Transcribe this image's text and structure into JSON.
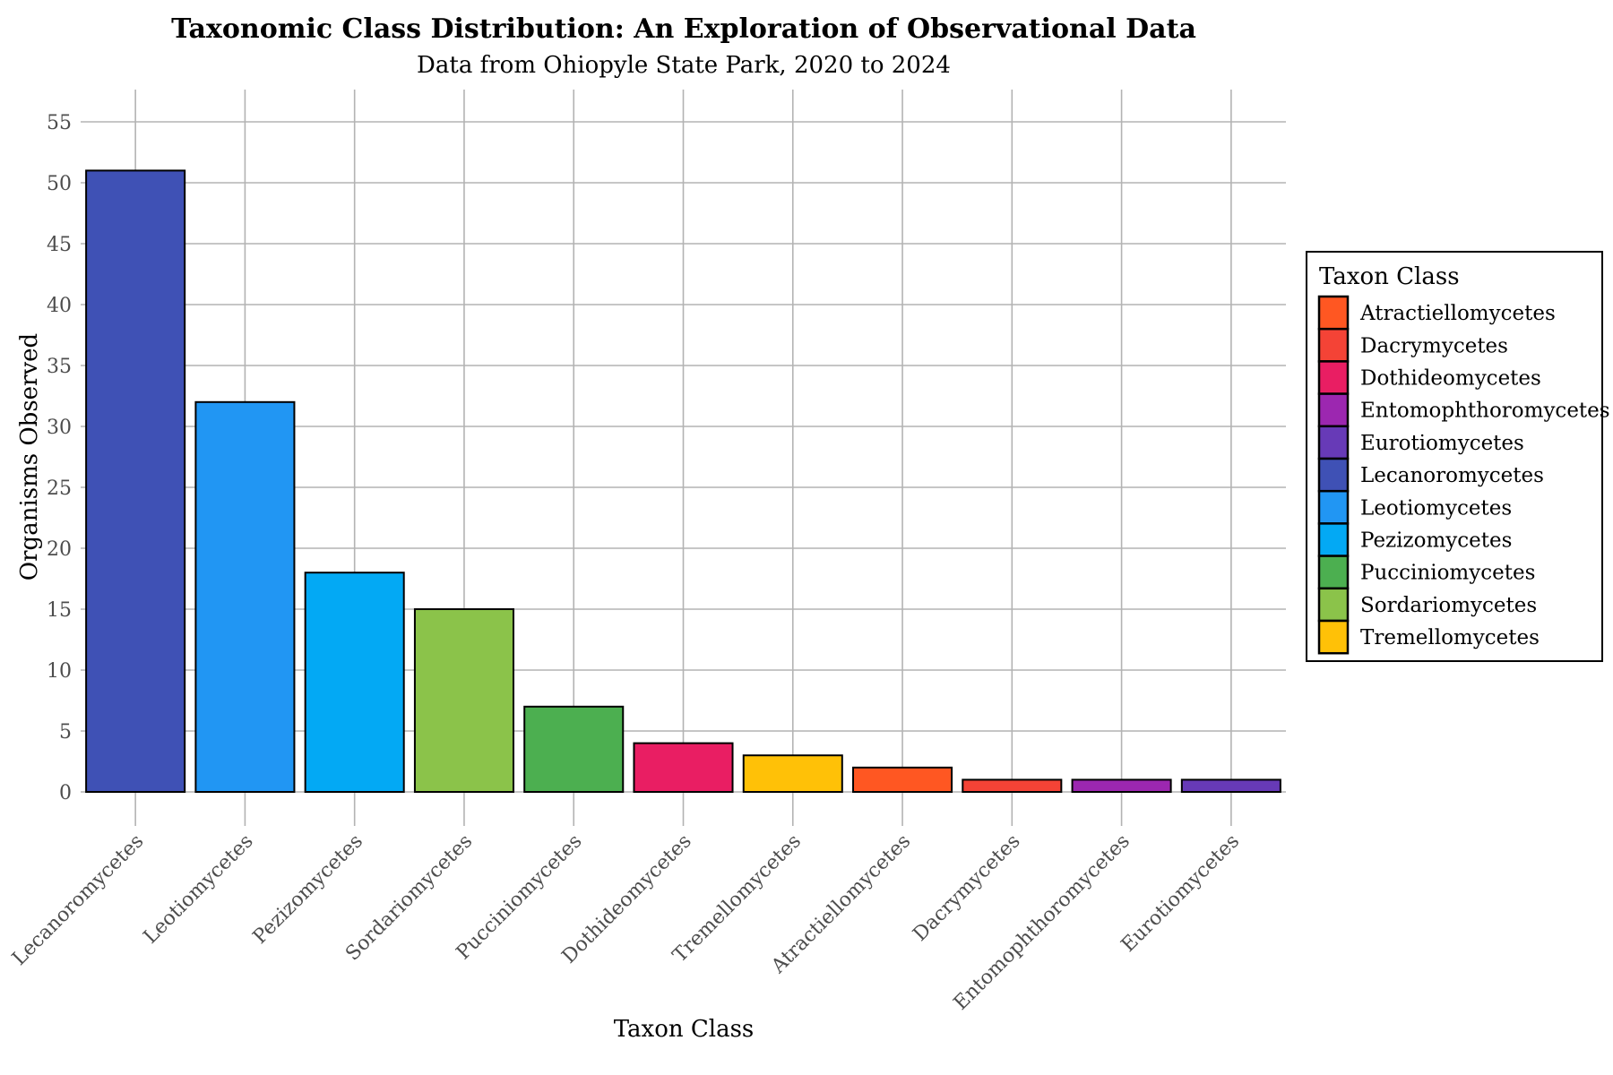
{
  "chart_data": {
    "type": "bar",
    "title": "Taxonomic Class Distribution: An Exploration of Observational Data",
    "subtitle": "Data from Ohiopyle State Park, 2020 to 2024",
    "xlabel": "Taxon Class",
    "ylabel": "Organisms Observed",
    "ylim": [
      0,
      55
    ],
    "yticks": [
      0,
      5,
      10,
      15,
      20,
      25,
      30,
      35,
      40,
      45,
      50,
      55
    ],
    "grid": true,
    "legend_position": "right",
    "categories": [
      "Lecanoromycetes",
      "Leotiomycetes",
      "Pezizomycetes",
      "Sordariomycetes",
      "Pucciniomycetes",
      "Dothideomycetes",
      "Tremellomycetes",
      "Atractiellomycetes",
      "Dacrymycetes",
      "Entomophthoromycetes",
      "Eurotiomycetes"
    ],
    "values": [
      51,
      32,
      18,
      15,
      7,
      4,
      3,
      2,
      1,
      1,
      1
    ],
    "colors": [
      "#3F51B5",
      "#2196F3",
      "#03A9F4",
      "#8BC34A",
      "#4CAF50",
      "#E91E63",
      "#FFC107",
      "#FF5722",
      "#F44336",
      "#9C27B0",
      "#673AB7"
    ],
    "legend": {
      "title": "Taxon Class",
      "entries": [
        {
          "label": "Atractiellomycetes",
          "color": "#FF5722"
        },
        {
          "label": "Dacrymycetes",
          "color": "#F44336"
        },
        {
          "label": "Dothideomycetes",
          "color": "#E91E63"
        },
        {
          "label": "Entomophthoromycetes",
          "color": "#9C27B0"
        },
        {
          "label": "Eurotiomycetes",
          "color": "#673AB7"
        },
        {
          "label": "Lecanoromycetes",
          "color": "#3F51B5"
        },
        {
          "label": "Leotiomycetes",
          "color": "#2196F3"
        },
        {
          "label": "Pezizomycetes",
          "color": "#03A9F4"
        },
        {
          "label": "Pucciniomycetes",
          "color": "#4CAF50"
        },
        {
          "label": "Sordariomycetes",
          "color": "#8BC34A"
        },
        {
          "label": "Tremellomycetes",
          "color": "#FFC107"
        }
      ]
    }
  }
}
